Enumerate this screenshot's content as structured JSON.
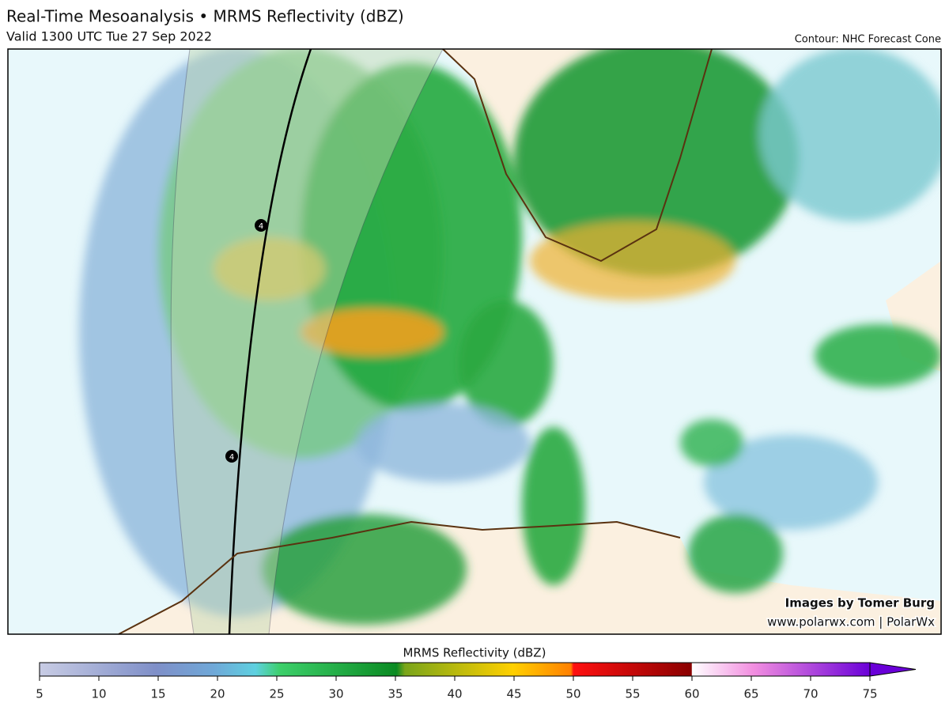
{
  "header": {
    "title": "Real-Time Mesoanalysis • MRMS Reflectivity (dBZ)",
    "subtitle": "Valid 1300 UTC Tue 27 Sep 2022",
    "contour": "Contour: NHC Forecast Cone"
  },
  "map": {
    "track_points": [
      {
        "label": "4"
      },
      {
        "label": "4"
      }
    ],
    "credit": "Images by Tomer Burg",
    "website": "www.polarwx.com | PolarWx"
  },
  "colorbar": {
    "title": "MRMS Reflectivity (dBZ)",
    "range": [
      5,
      75
    ],
    "ticks": [
      5,
      10,
      15,
      20,
      25,
      30,
      35,
      40,
      45,
      50,
      55,
      60,
      65,
      70,
      75
    ]
  }
}
